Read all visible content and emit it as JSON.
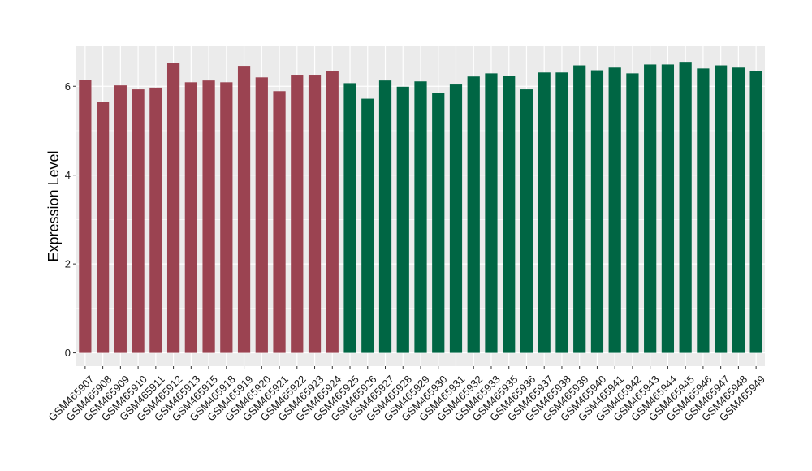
{
  "chart_data": {
    "type": "bar",
    "title": "",
    "xlabel": "",
    "ylabel": "Expression Level",
    "ylim": [
      -0.3,
      6.9
    ],
    "yticks": [
      0,
      2,
      4,
      6
    ],
    "grid": true,
    "legend": "none",
    "categories": [
      "GSM465907",
      "GSM465908",
      "GSM465909",
      "GSM465910",
      "GSM465911",
      "GSM465912",
      "GSM465913",
      "GSM465915",
      "GSM465918",
      "GSM465919",
      "GSM465920",
      "GSM465921",
      "GSM465922",
      "GSM465923",
      "GSM465924",
      "GSM465925",
      "GSM465926",
      "GSM465927",
      "GSM465928",
      "GSM465929",
      "GSM465930",
      "GSM465931",
      "GSM465932",
      "GSM465933",
      "GSM465935",
      "GSM465936",
      "GSM465937",
      "GSM465938",
      "GSM465939",
      "GSM465940",
      "GSM465941",
      "GSM465942",
      "GSM465943",
      "GSM465944",
      "GSM465945",
      "GSM465946",
      "GSM465947",
      "GSM465948",
      "GSM465949"
    ],
    "values": [
      6.15,
      5.65,
      6.02,
      5.93,
      5.97,
      6.53,
      6.09,
      6.13,
      6.09,
      6.46,
      6.2,
      5.89,
      6.26,
      6.26,
      6.35,
      6.07,
      5.72,
      6.13,
      5.99,
      6.11,
      5.84,
      6.04,
      6.22,
      6.29,
      6.24,
      5.93,
      6.31,
      6.31,
      6.47,
      6.36,
      6.42,
      6.29,
      6.49,
      6.49,
      6.55,
      6.4,
      6.47,
      6.42,
      6.34
    ],
    "groups": [
      0,
      0,
      0,
      0,
      0,
      0,
      0,
      0,
      0,
      0,
      0,
      0,
      0,
      0,
      0,
      1,
      1,
      1,
      1,
      1,
      1,
      1,
      1,
      1,
      1,
      1,
      1,
      1,
      1,
      1,
      1,
      1,
      1,
      1,
      1,
      1,
      1,
      1,
      1
    ],
    "group_colors": [
      "#9b4351",
      "#006644"
    ],
    "panel_background": "#ebebeb",
    "grid_color": "#ffffff"
  }
}
